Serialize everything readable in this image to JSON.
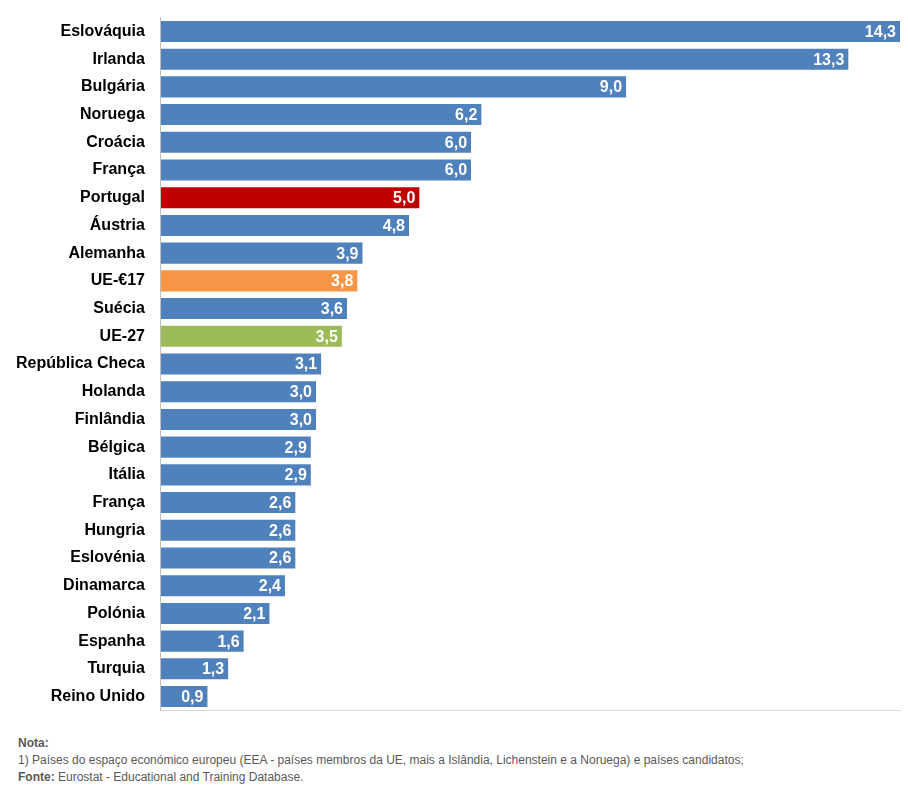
{
  "chart_data": {
    "type": "bar",
    "orientation": "horizontal",
    "categories": [
      "Eslováquia",
      "Irlanda",
      "Bulgária",
      "Noruega",
      "Croácia",
      "França",
      "Portugal",
      "Áustria",
      "Alemanha",
      "UE-€17",
      "Suécia",
      "UE-27",
      "República Checa",
      "Holanda",
      "Finlândia",
      "Bélgica",
      "Itália",
      "França",
      "Hungria",
      "Eslovénia",
      "Dinamarca",
      "Polónia",
      "Espanha",
      "Turquia",
      "Reino Unido"
    ],
    "values": [
      14.3,
      13.3,
      9.0,
      6.2,
      6.0,
      6.0,
      5.0,
      4.8,
      3.9,
      3.8,
      3.6,
      3.5,
      3.1,
      3.0,
      3.0,
      2.9,
      2.9,
      2.6,
      2.6,
      2.6,
      2.4,
      2.1,
      1.6,
      1.3,
      0.9
    ],
    "value_labels": [
      "14,3",
      "13,3",
      "9,0",
      "6,2",
      "6,0",
      "6,0",
      "5,0",
      "4,8",
      "3,9",
      "3,8",
      "3,6",
      "3,5",
      "3,1",
      "3,0",
      "3,0",
      "2,9",
      "2,9",
      "2,6",
      "2,6",
      "2,6",
      "2,4",
      "2,1",
      "1,6",
      "1,3",
      "0,9"
    ],
    "colors": [
      "#4f81bd",
      "#4f81bd",
      "#4f81bd",
      "#4f81bd",
      "#4f81bd",
      "#4f81bd",
      "#c00000",
      "#4f81bd",
      "#4f81bd",
      "#f79646",
      "#4f81bd",
      "#9bbb59",
      "#4f81bd",
      "#4f81bd",
      "#4f81bd",
      "#4f81bd",
      "#4f81bd",
      "#4f81bd",
      "#4f81bd",
      "#4f81bd",
      "#4f81bd",
      "#4f81bd",
      "#4f81bd",
      "#4f81bd",
      "#4f81bd"
    ],
    "xlim": [
      0,
      14.3
    ],
    "xticks": [],
    "grid": false,
    "data_labels": true,
    "tick_labels": "y",
    "note": {
      "title": "Nota:",
      "text": "1) Países do espaço económico europeu (EEA - países membros da UE, mais  a Islândia, Lichenstein e a Noruega) e países candidatos;",
      "source_label": "Fonte:",
      "source": "Eurostat - Educational and Training Database."
    }
  }
}
